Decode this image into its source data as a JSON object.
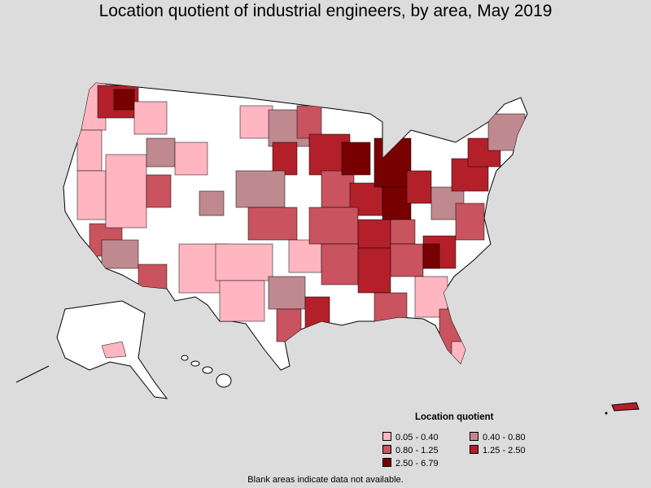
{
  "title": "Location quotient of industrial engineers, by area, May 2019",
  "legend": {
    "title": "Location quotient",
    "items": [
      {
        "label": "0.05 - 0.40",
        "color": "#ffb6c1"
      },
      {
        "label": "0.40 - 0.80",
        "color": "#c0898f"
      },
      {
        "label": "0.80 - 1.25",
        "color": "#c9535e"
      },
      {
        "label": "1.25 - 2.50",
        "color": "#b3202a"
      },
      {
        "label": "2.50 - 6.79",
        "color": "#780000"
      }
    ]
  },
  "footnote": "Blank areas indicate data not available."
}
